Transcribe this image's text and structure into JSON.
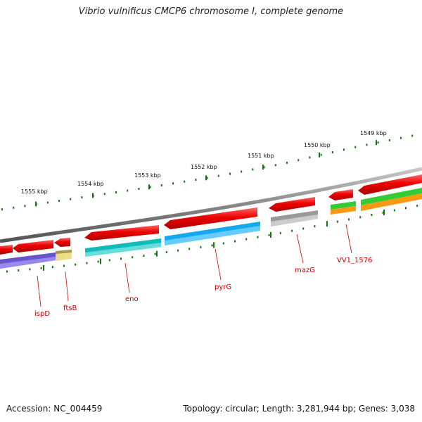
{
  "title": "Vibrio vulnificus CMCP6 chromosome I, complete genome",
  "footer": {
    "accession": "Accession: NC_004459",
    "stats": "Topology: circular; Length: 3,281,944 bp; Genes: 3,038"
  },
  "ticks": [
    {
      "label": "1555 kbp"
    },
    {
      "label": "1554 kbp"
    },
    {
      "label": "1553 kbp"
    },
    {
      "label": "1552 kbp"
    },
    {
      "label": "1551 kbp"
    },
    {
      "label": "1550 kbp"
    },
    {
      "label": "1549 kbp"
    }
  ],
  "genes": [
    {
      "name": "ispD"
    },
    {
      "name": "ftsB"
    },
    {
      "name": "eno"
    },
    {
      "name": "pyrG"
    },
    {
      "name": "mazG"
    },
    {
      "name": "VV1_1576"
    }
  ],
  "colors": {
    "backbone": "#888888",
    "arrow": "#ee0000",
    "ispD": "#6655cc",
    "ftsB": "#eedd88",
    "eno": "#11bbbb",
    "pyrG": "#11aaee",
    "mazG": "#aaaaaa",
    "green": "#33cc33",
    "orange": "#ff9911",
    "tick": "#117711"
  }
}
